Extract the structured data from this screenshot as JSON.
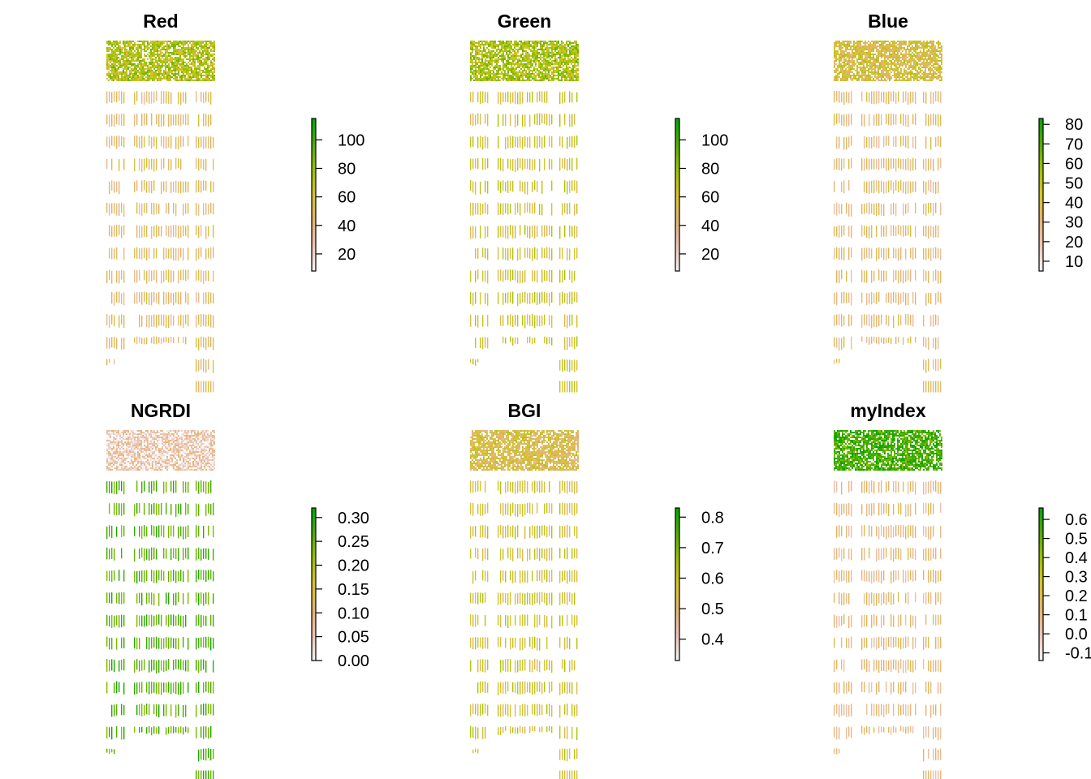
{
  "chart_data": [
    {
      "type": "heatmap",
      "title": "Red",
      "legend": {
        "ticks": [
          20,
          40,
          60,
          80,
          100
        ],
        "range": [
          8,
          115
        ]
      },
      "palette": [
        "#f2f2f2",
        "#efc2b3",
        "#e4b46d",
        "#d5c42c",
        "#9ac200",
        "#4fad00",
        "#00a600"
      ],
      "color_bias": {
        "top": 0.6,
        "plots": 0.35
      }
    },
    {
      "type": "heatmap",
      "title": "Green",
      "legend": {
        "ticks": [
          20,
          40,
          60,
          80,
          100
        ],
        "range": [
          8,
          115
        ]
      },
      "palette": [
        "#f2f2f2",
        "#efc2b3",
        "#e4b46d",
        "#d5c42c",
        "#9ac200",
        "#4fad00",
        "#00a600"
      ],
      "color_bias": {
        "top": 0.62,
        "plots": 0.5
      }
    },
    {
      "type": "heatmap",
      "title": "Blue",
      "legend": {
        "ticks": [
          10,
          20,
          30,
          40,
          50,
          60,
          70,
          80
        ],
        "range": [
          5,
          83
        ]
      },
      "palette": [
        "#f2f2f2",
        "#efc2b3",
        "#e4b46d",
        "#d5c42c",
        "#9ac200",
        "#4fad00",
        "#00a600"
      ],
      "color_bias": {
        "top": 0.45,
        "plots": 0.33
      }
    },
    {
      "type": "heatmap",
      "title": "NGRDI",
      "legend": {
        "ticks": [
          "0.00",
          "0.05",
          "0.10",
          "0.15",
          "0.20",
          "0.25",
          "0.30"
        ],
        "range": [
          0.0,
          0.32
        ]
      },
      "palette": [
        "#f2f2f2",
        "#efc2b3",
        "#e4b46d",
        "#d5c42c",
        "#9ac200",
        "#4fad00",
        "#00a600"
      ],
      "color_bias": {
        "top": 0.15,
        "plots": 0.82
      }
    },
    {
      "type": "heatmap",
      "title": "BGI",
      "legend": {
        "ticks": [
          "0.4",
          "0.5",
          "0.6",
          "0.7",
          "0.8"
        ],
        "range": [
          0.33,
          0.83
        ]
      },
      "palette": [
        "#f2f2f2",
        "#efc2b3",
        "#e4b46d",
        "#d5c42c",
        "#9ac200",
        "#4fad00",
        "#00a600"
      ],
      "color_bias": {
        "top": 0.42,
        "plots": 0.5
      }
    },
    {
      "type": "heatmap",
      "title": "myIndex",
      "legend": {
        "ticks": [
          "0.6",
          "0.5",
          "0.4",
          "0.3",
          "0.2",
          "0.1",
          "0.0",
          "-0.1"
        ],
        "range": [
          -0.14,
          0.66
        ]
      },
      "palette": [
        "#f2f2f2",
        "#efc2b3",
        "#e4b46d",
        "#d5c42c",
        "#9ac200",
        "#4fad00",
        "#00a600"
      ],
      "color_bias": {
        "top": 0.85,
        "plots": 0.3
      }
    }
  ]
}
